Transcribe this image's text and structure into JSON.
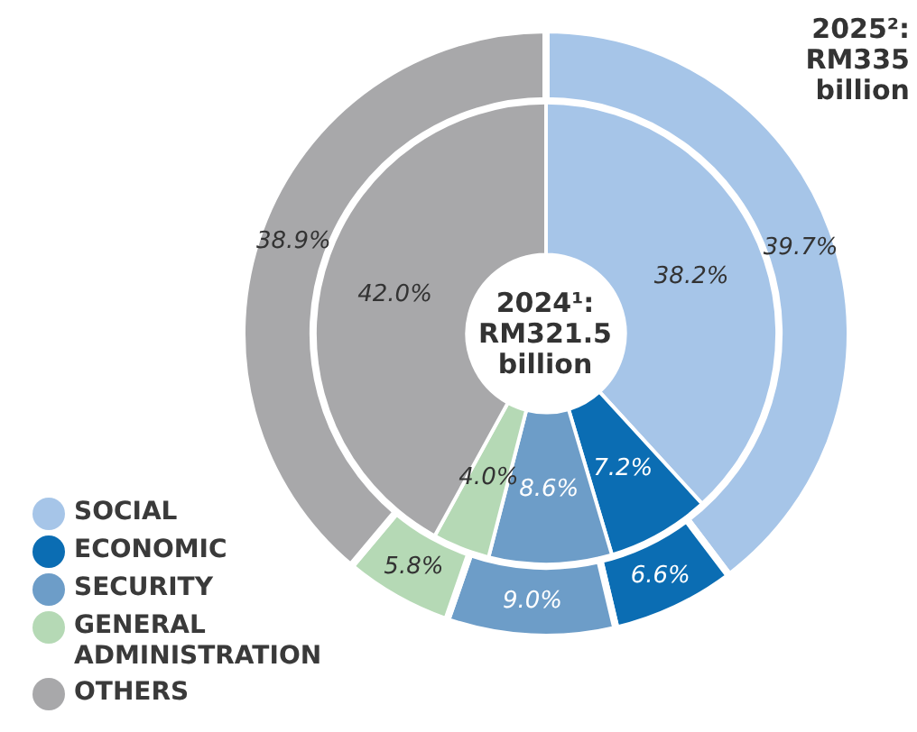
{
  "chart_data": {
    "type": "donut",
    "categories": [
      "SOCIAL",
      "ECONOMIC",
      "SECURITY",
      "GENERAL ADMINISTRATION",
      "OTHERS"
    ],
    "colors": [
      "#a6c5e8",
      "#0b6db3",
      "#6d9dc8",
      "#b5d9b5",
      "#a8a8aa"
    ],
    "series": [
      {
        "name": "2025²: RM335 billion",
        "values": [
          39.7,
          6.6,
          9.0,
          5.8,
          38.9
        ],
        "value_labels": [
          "39.7%",
          "6.6%",
          "9.0%",
          "5.8%",
          "38.9%"
        ]
      },
      {
        "name": "2024¹: RM321.5 billion",
        "values": [
          38.2,
          7.2,
          8.6,
          4.0,
          42.0
        ],
        "value_labels": [
          "38.2%",
          "7.2%",
          "8.6%",
          "4.0%",
          "42.0%"
        ]
      }
    ],
    "legend": "bottom left"
  }
}
